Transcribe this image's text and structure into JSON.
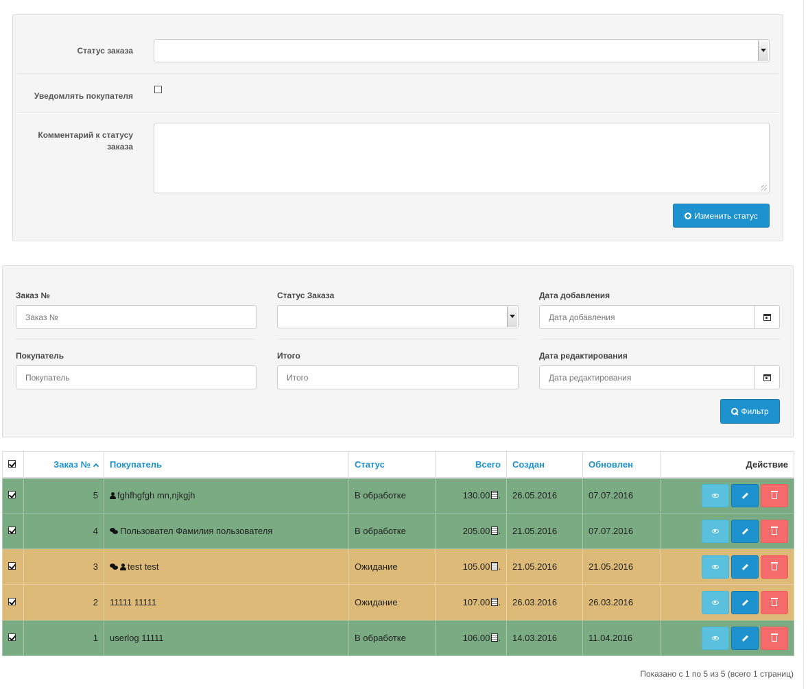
{
  "status_form": {
    "order_status_label": "Статус заказа",
    "order_status_value": "",
    "notify_label": "Уведомлять покупателя",
    "notify_checked": false,
    "comment_label": "Комментарий к статусу заказа",
    "comment_value": "",
    "submit_label": "Изменить статус"
  },
  "filter": {
    "order_no_label": "Заказ №",
    "order_no_placeholder": "Заказ №",
    "status_label": "Статус Заказа",
    "status_value": "",
    "date_added_label": "Дата добавления",
    "date_added_placeholder": "Дата добавления",
    "customer_label": "Покупатель",
    "customer_placeholder": "Покупатель",
    "total_label": "Итого",
    "total_placeholder": "Итого",
    "date_modified_label": "Дата редактирования",
    "date_modified_placeholder": "Дата редактирования",
    "filter_button_label": "Фильтр"
  },
  "table": {
    "columns": {
      "order_no": "Заказ №",
      "customer": "Покупатель",
      "status": "Статус",
      "total": "Всего",
      "created": "Создан",
      "updated": "Обновлен",
      "action": "Действие"
    },
    "rows": [
      {
        "order_no": "5",
        "customer": "fghfhgfgh mn,njkgjh",
        "status": "В обработке",
        "total": "130.00",
        "created": "26.05.2016",
        "updated": "07.07.2016",
        "icons": [
          "user-icon"
        ]
      },
      {
        "order_no": "4",
        "customer": "Пользовател Фамилия пользователя",
        "status": "В обработке",
        "total": "205.00",
        "created": "21.05.2016",
        "updated": "07.07.2016",
        "icons": [
          "comments-icon"
        ]
      },
      {
        "order_no": "3",
        "customer": "test test",
        "status": "Ожидание",
        "total": "105.00",
        "created": "21.05.2016",
        "updated": "21.05.2016",
        "icons": [
          "comments-icon",
          "user-icon"
        ]
      },
      {
        "order_no": "2",
        "customer": "11111 11111",
        "status": "Ожидание",
        "total": "107.00",
        "created": "26.03.2016",
        "updated": "26.03.2016",
        "icons": []
      },
      {
        "order_no": "1",
        "customer": "userlog 11111",
        "status": "В обработке",
        "total": "106.00",
        "created": "14.03.2016",
        "updated": "11.04.2016",
        "icons": []
      }
    ],
    "row_colors": {
      "processing": "#7aab83",
      "pending": "#ddba78"
    }
  },
  "pagination_text": "Показано с 1 по 5 из 5 (всего 1 страниц)",
  "colors": {
    "primary": "#1e91cf",
    "info": "#5bc0de",
    "danger": "#f56b6b"
  }
}
